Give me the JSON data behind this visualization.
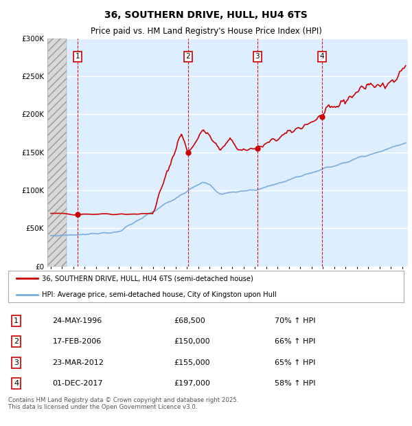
{
  "title": "36, SOUTHERN DRIVE, HULL, HU4 6TS",
  "subtitle": "Price paid vs. HM Land Registry's House Price Index (HPI)",
  "ylim": [
    0,
    300000
  ],
  "yticks": [
    0,
    50000,
    100000,
    150000,
    200000,
    250000,
    300000
  ],
  "ytick_labels": [
    "£0",
    "£50K",
    "£100K",
    "£150K",
    "£200K",
    "£250K",
    "£300K"
  ],
  "xmin": 1993.7,
  "xmax": 2025.5,
  "background_color": "#ddeeff",
  "grid_color": "#ffffff",
  "red_line_color": "#cc0000",
  "blue_line_color": "#7aaddb",
  "transaction_dates": [
    1996.38,
    2006.12,
    2012.22,
    2017.92
  ],
  "transaction_prices": [
    68500,
    150000,
    155000,
    197000
  ],
  "transaction_labels": [
    "1",
    "2",
    "3",
    "4"
  ],
  "transaction_text": [
    [
      "1",
      "24-MAY-1996",
      "£68,500",
      "70% ↑ HPI"
    ],
    [
      "2",
      "17-FEB-2006",
      "£150,000",
      "66% ↑ HPI"
    ],
    [
      "3",
      "23-MAR-2012",
      "£155,000",
      "65% ↑ HPI"
    ],
    [
      "4",
      "01-DEC-2017",
      "£197,000",
      "58% ↑ HPI"
    ]
  ],
  "legend_entries": [
    "36, SOUTHERN DRIVE, HULL, HU4 6TS (semi-detached house)",
    "HPI: Average price, semi-detached house, City of Kingston upon Hull"
  ],
  "footer_text": "Contains HM Land Registry data © Crown copyright and database right 2025.\nThis data is licensed under the Open Government Licence v3.0.",
  "hatch_xmax": 1995.4
}
